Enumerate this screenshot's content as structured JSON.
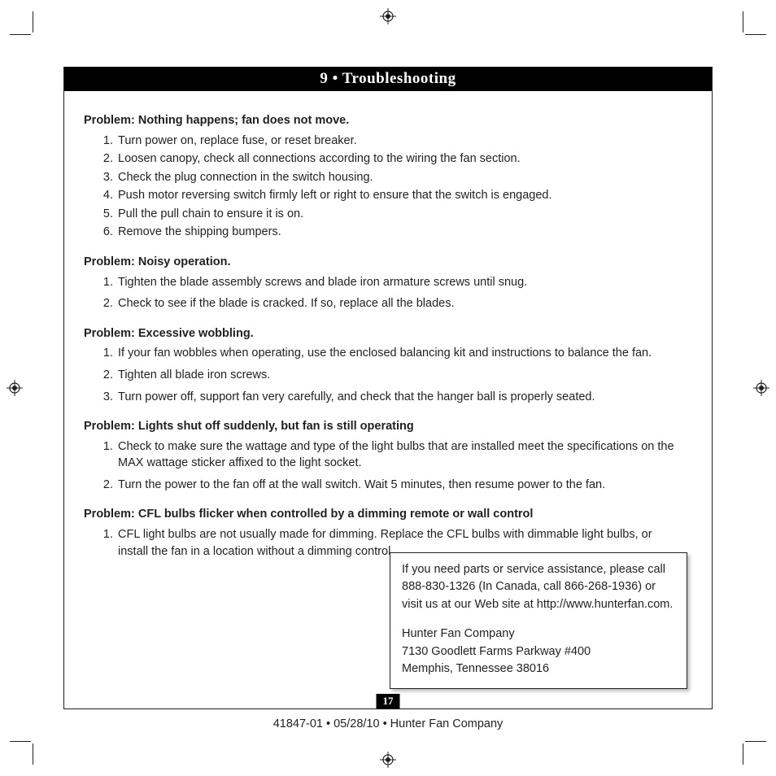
{
  "title": "9 • Troubleshooting",
  "problems": [
    {
      "heading": "Problem:  Nothing happens; fan does not move.",
      "spaced": false,
      "steps": [
        "Turn power on, replace fuse, or reset breaker.",
        "Loosen canopy, check all connections according to the wiring the fan section.",
        "Check the plug connection in the switch housing.",
        "Push motor reversing switch firmly left or right to ensure that the switch is engaged.",
        "Pull the pull chain to ensure it is on.",
        "Remove the shipping bumpers."
      ]
    },
    {
      "heading": "Problem:  Noisy operation.",
      "spaced": true,
      "steps": [
        "Tighten the blade assembly screws and blade iron armature screws until snug.",
        "Check to see if the blade is cracked.  If so, replace all the blades."
      ]
    },
    {
      "heading": "Problem:  Excessive wobbling.",
      "spaced": true,
      "steps": [
        "If your fan wobbles when operating, use the enclosed balancing kit and instructions to balance the fan.",
        "Tighten all blade iron screws.",
        "Turn power off, support fan very carefully, and check that the hanger ball is properly seated."
      ]
    },
    {
      "heading": "Problem:  Lights shut off suddenly, but fan is still operating",
      "spaced": true,
      "steps": [
        "Check to make sure the wattage and type of the light bulbs that are installed meet the specifications on the MAX wattage sticker affixed to the light socket.",
        "Turn the power to the fan off at the wall switch. Wait 5 minutes, then resume power to the fan."
      ]
    },
    {
      "heading": "Problem:  CFL bulbs flicker when controlled by a dimming remote or wall control",
      "spaced": false,
      "steps": [
        " CFL light bulbs are not usually made for dimming. Replace the CFL bulbs with dimmable light bulbs, or install the fan in a location without a dimming control."
      ]
    }
  ],
  "contact": {
    "line1": "If you need parts or service assistance, please call 888-830-1326 (In Canada, call 866-268-1936) or visit us at our Web site at",
    "url": "http://www.hunterfan.com.",
    "company": "Hunter Fan Company",
    "addr1": "7130 Goodlett Farms Parkway #400",
    "addr2": "Memphis, Tennessee 38016"
  },
  "page_number": "17",
  "footer": "41847-01  •  05/28/10  •  Hunter Fan Company"
}
